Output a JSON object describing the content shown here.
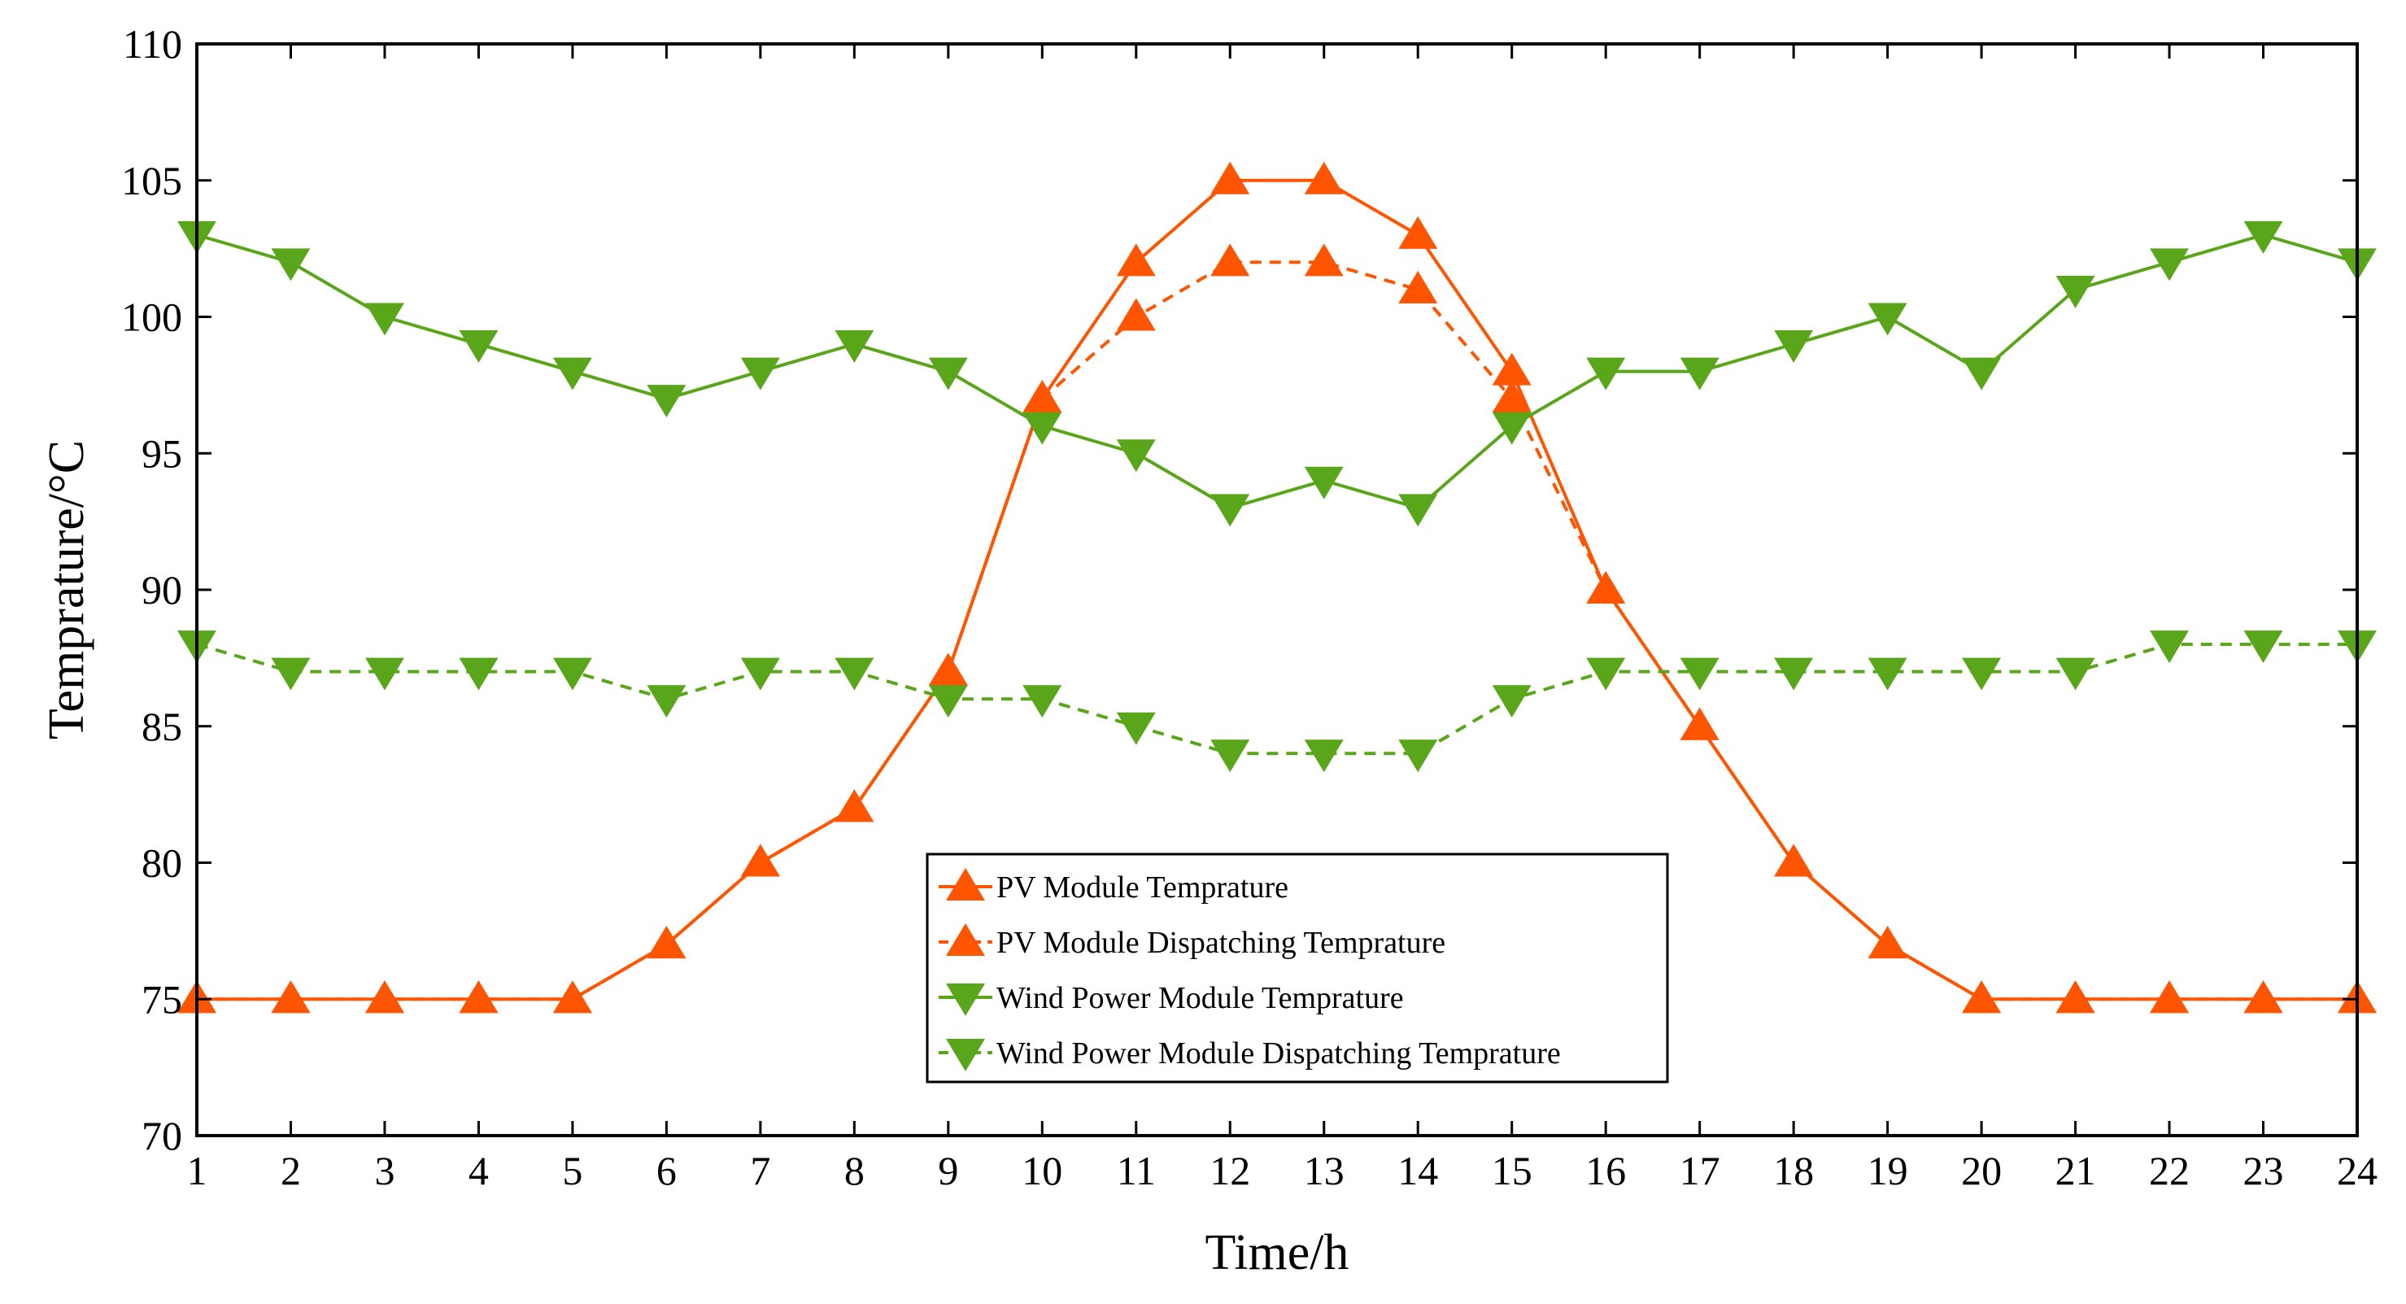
{
  "chart_data": {
    "type": "line",
    "title": "",
    "xlabel": "Time/h",
    "ylabel": "Temprature/°C",
    "x": [
      1,
      2,
      3,
      4,
      5,
      6,
      7,
      8,
      9,
      10,
      11,
      12,
      13,
      14,
      15,
      16,
      17,
      18,
      19,
      20,
      21,
      22,
      23,
      24
    ],
    "xlim": [
      1,
      24
    ],
    "ylim": [
      70,
      110
    ],
    "yticks": [
      70,
      75,
      80,
      85,
      90,
      95,
      100,
      105,
      110
    ],
    "grid": false,
    "legend_position": "bottom-center",
    "series": [
      {
        "name": "PV Module Temprature",
        "color": "#ff5500",
        "line_style": "solid",
        "marker": "triangle-up",
        "values": [
          75,
          75,
          75,
          75,
          75,
          77,
          80,
          82,
          87,
          97,
          102,
          105,
          105,
          103,
          98,
          90,
          85,
          80,
          77,
          75,
          75,
          75,
          75,
          75
        ]
      },
      {
        "name": "PV Module Dispatching Temprature",
        "color": "#ff5500",
        "line_style": "dashed",
        "marker": "triangle-up",
        "values": [
          75,
          75,
          75,
          75,
          75,
          77,
          80,
          82,
          87,
          97,
          100,
          102,
          102,
          101,
          97,
          90,
          85,
          80,
          77,
          75,
          75,
          75,
          75,
          75
        ]
      },
      {
        "name": "Wind Power Module Temprature",
        "color": "#5aa61b",
        "line_style": "solid",
        "marker": "triangle-down",
        "values": [
          103,
          102,
          100,
          99,
          98,
          97,
          98,
          99,
          98,
          96,
          95,
          93,
          94,
          93,
          96,
          98,
          98,
          99,
          100,
          98,
          101,
          102,
          103,
          102
        ]
      },
      {
        "name": "Wind Power Module Dispatching Temprature",
        "color": "#5aa61b",
        "line_style": "dashed",
        "marker": "triangle-down",
        "values": [
          88,
          87,
          87,
          87,
          87,
          86,
          87,
          87,
          86,
          86,
          85,
          84,
          84,
          84,
          86,
          87,
          87,
          87,
          87,
          87,
          87,
          88,
          88,
          88
        ]
      }
    ]
  }
}
